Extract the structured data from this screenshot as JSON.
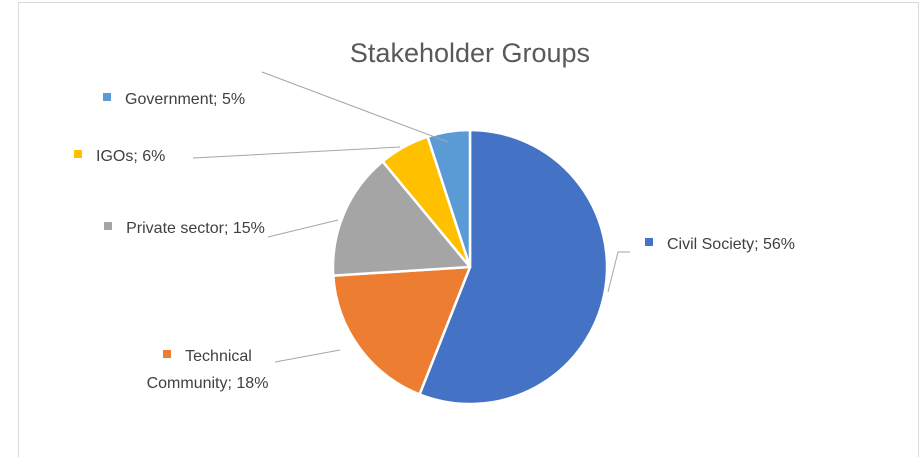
{
  "chart_data": {
    "type": "pie",
    "title": "Stakeholder Groups",
    "categories": [
      "Civil Society;",
      "Technical Community;",
      "Private sector;",
      "IGOs;",
      "Government;"
    ],
    "values": [
      56,
      18,
      15,
      6,
      5
    ],
    "value_labels": [
      "56%",
      "18%",
      "15%",
      "6%",
      "5%"
    ],
    "colors": [
      "#4472c4",
      "#ed7d31",
      "#a5a5a5",
      "#ffc000",
      "#5b9bd5"
    ]
  }
}
